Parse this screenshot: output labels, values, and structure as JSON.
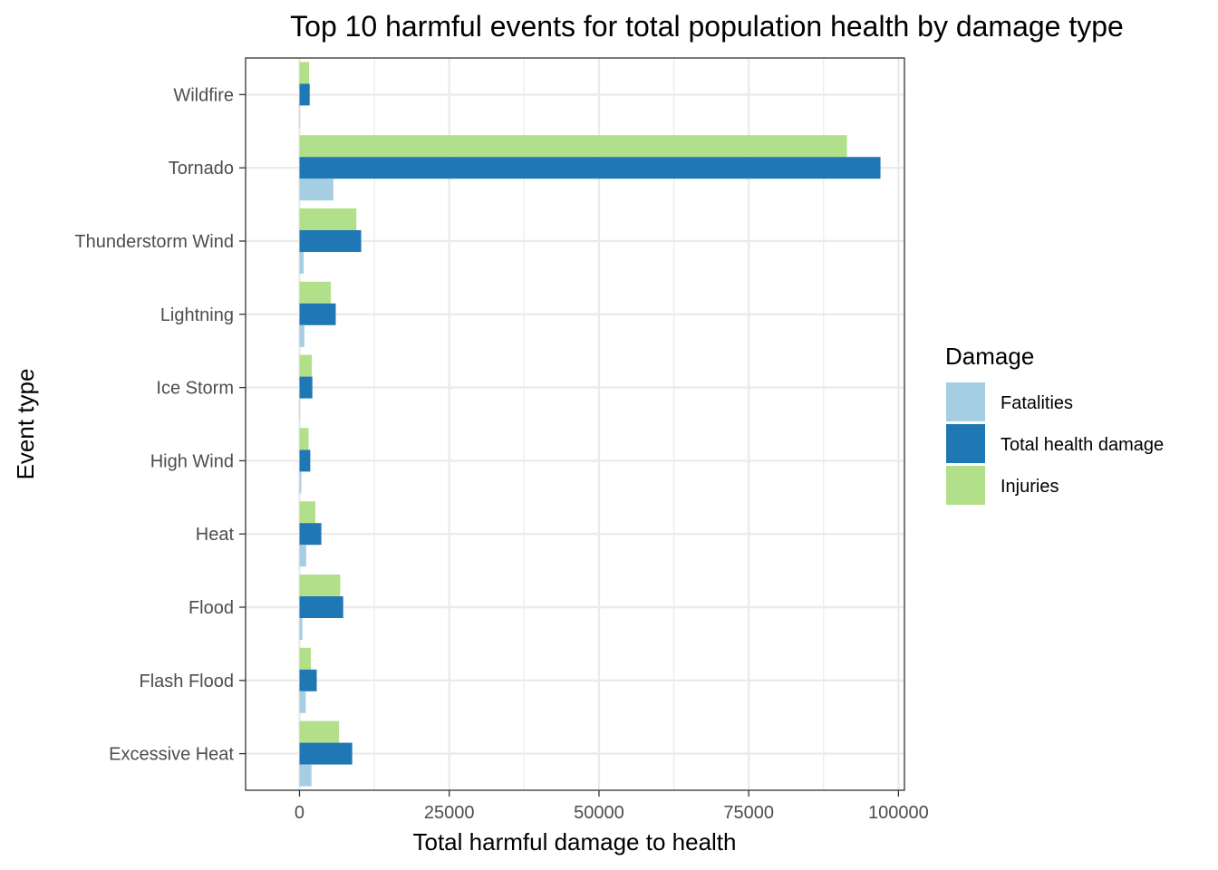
{
  "chart_data": {
    "type": "bar",
    "orientation": "horizontal",
    "title": "Top 10 harmful events for total population health by damage type",
    "xlabel": "Total harmful damage to health",
    "ylabel": "Event type",
    "xlim": [
      -9000,
      101000
    ],
    "xticks": [
      0,
      25000,
      50000,
      75000,
      100000
    ],
    "xtick_labels": [
      "0",
      "25000",
      "50000",
      "75000",
      "100000"
    ],
    "grid": true,
    "legend_title": "Damage",
    "legend_position": "right",
    "categories": [
      "Wildfire",
      "Tornado",
      "Thunderstorm Wind",
      "Lightning",
      "Ice Storm",
      "High Wind",
      "Heat",
      "Flood",
      "Flash Flood",
      "Excessive Heat"
    ],
    "series": [
      {
        "name": "Fatalities",
        "color": "#a6cee3",
        "values": [
          90,
          5660,
          700,
          820,
          90,
          290,
          1120,
          480,
          1040,
          2000
        ]
      },
      {
        "name": "Total health damage",
        "color": "#1f78b4",
        "values": [
          1700,
          97000,
          10300,
          6050,
          2150,
          1800,
          3650,
          7300,
          2880,
          8800
        ]
      },
      {
        "name": "Injuries",
        "color": "#b2df8a",
        "values": [
          1600,
          91400,
          9500,
          5230,
          2060,
          1520,
          2650,
          6800,
          1900,
          6600
        ]
      }
    ]
  }
}
